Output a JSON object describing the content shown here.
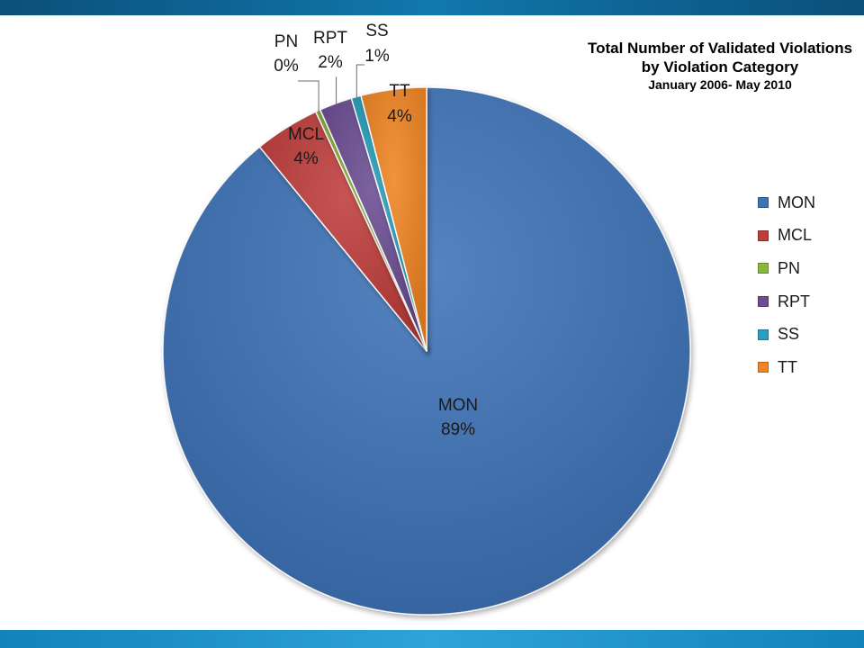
{
  "chart_data": {
    "type": "pie",
    "title": "Total Number of Validated Violations",
    "subtitle": "by Violation Category",
    "date_range": "January 2006- May 2010",
    "start_angle_deg": 0,
    "slices": [
      {
        "label": "MON",
        "value": 89,
        "percent_label": "89%",
        "color": "#3d72b6"
      },
      {
        "label": "MCL",
        "value": 4,
        "percent_label": "4%",
        "color": "#be3e3a"
      },
      {
        "label": "PN",
        "value": 0.3,
        "percent_label": "0%",
        "color": "#8cb63d"
      },
      {
        "label": "RPT",
        "value": 2,
        "percent_label": "2%",
        "color": "#6b4d92"
      },
      {
        "label": "SS",
        "value": 0.6,
        "percent_label": "1%",
        "color": "#2aa0be"
      },
      {
        "label": "TT",
        "value": 4,
        "percent_label": "4%",
        "color": "#ef8424"
      }
    ],
    "legend": {
      "position": "right",
      "entries": [
        "MON",
        "MCL",
        "PN",
        "RPT",
        "SS",
        "TT"
      ]
    }
  }
}
